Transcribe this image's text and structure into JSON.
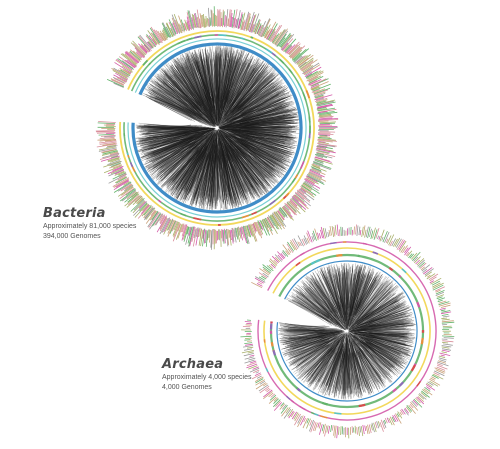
{
  "figure": {
    "colors": {
      "branch": "#1a1a1a",
      "ring_blue": "#2a7fc1",
      "ring_green": "#62b36a",
      "ring_pink": "#d35aa8",
      "ring_yellow": "#f1d44a",
      "ring_teal": "#57c3c8",
      "ring_orange": "#e8903b",
      "ring_purple": "#8e6bb8",
      "ring_red": "#d94c4c",
      "tick_tan": "#c9a27a",
      "tick_olive": "#a8b06a",
      "tick_rose": "#d98f9b",
      "tick_grey": "#9a9a9a"
    },
    "trees": [
      {
        "name": "Bacteria",
        "lines": [
          "Approximately 81,000 species",
          "394,000 Genomes"
        ]
      },
      {
        "name": "Archaea",
        "lines": [
          "Approximately 4,000 species",
          "4,000 Genomes"
        ]
      }
    ]
  }
}
